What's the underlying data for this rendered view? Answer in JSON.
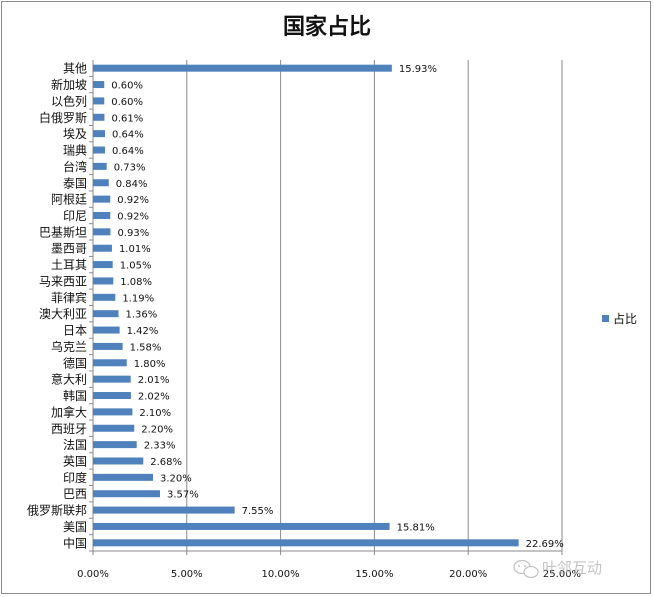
{
  "chart_data": {
    "type": "bar",
    "orientation": "horizontal",
    "title": "国家占比",
    "xlabel": "",
    "ylabel": "",
    "xlim": [
      0,
      25
    ],
    "x_ticks": [
      "0.00%",
      "5.00%",
      "10.00%",
      "15.00%",
      "20.00%",
      "25.00%"
    ],
    "grid": "vertical major gridlines",
    "legend_position": "right",
    "bar_color": "#4f81bd",
    "categories": [
      "中国",
      "美国",
      "俄罗斯联邦",
      "巴西",
      "印度",
      "英国",
      "法国",
      "西班牙",
      "加拿大",
      "韩国",
      "意大利",
      "德国",
      "乌克兰",
      "日本",
      "澳大利亚",
      "菲律宾",
      "马来西亚",
      "土耳其",
      "墨西哥",
      "巴基斯坦",
      "印尼",
      "阿根廷",
      "泰国",
      "台湾",
      "瑞典",
      "埃及",
      "白俄罗斯",
      "以色列",
      "新加坡",
      "其他"
    ],
    "series": [
      {
        "name": "占比",
        "values": [
          22.69,
          15.81,
          7.55,
          3.57,
          3.2,
          2.68,
          2.33,
          2.2,
          2.1,
          2.02,
          2.01,
          1.8,
          1.58,
          1.42,
          1.36,
          1.19,
          1.08,
          1.05,
          1.01,
          0.93,
          0.92,
          0.92,
          0.84,
          0.73,
          0.64,
          0.64,
          0.61,
          0.6,
          0.6,
          15.93
        ],
        "labels": [
          "22.69%",
          "15.81%",
          "7.55%",
          "3.57%",
          "3.20%",
          "2.68%",
          "2.33%",
          "2.20%",
          "2.10%",
          "2.02%",
          "2.01%",
          "1.80%",
          "1.58%",
          "1.42%",
          "1.36%",
          "1.19%",
          "1.08%",
          "1.05%",
          "1.01%",
          "0.93%",
          "0.92%",
          "0.92%",
          "0.84%",
          "0.73%",
          "0.64%",
          "0.64%",
          "0.61%",
          "0.60%",
          "0.60%",
          "15.93%"
        ]
      }
    ]
  },
  "watermark": {
    "text": "叶邻互动",
    "icon": "wechat-icon"
  }
}
